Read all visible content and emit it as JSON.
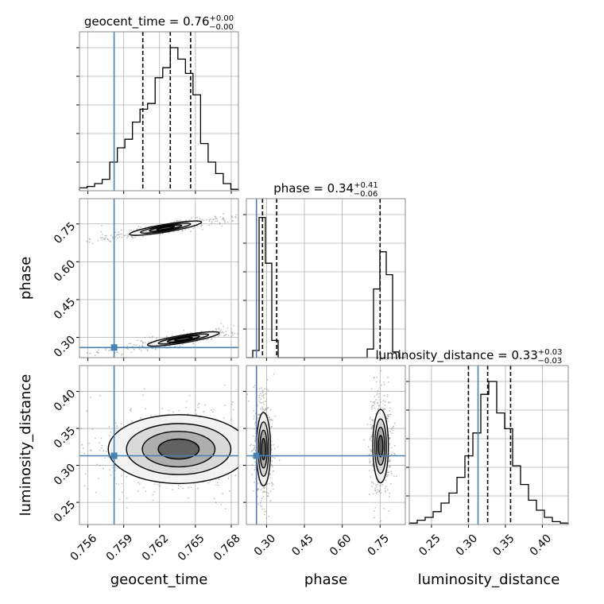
{
  "chart_data": {
    "type": "corner",
    "parameters": [
      "geocent_time",
      "phase",
      "luminosity_distance"
    ],
    "truth": {
      "geocent_time": 0.7582,
      "phase": 0.26,
      "luminosity_distance": 0.313
    },
    "axes": {
      "geocent_time": {
        "range": [
          0.7553,
          0.7686
        ],
        "ticks": [
          0.756,
          0.759,
          0.762,
          0.765,
          0.768
        ],
        "tick_labels": [
          "0.756",
          "0.759",
          "0.762",
          "0.765",
          "0.768"
        ],
        "label": "geocent_time"
      },
      "phase": {
        "range": [
          0.22,
          0.85
        ],
        "ticks": [
          0.3,
          0.45,
          0.6,
          0.75
        ],
        "tick_labels": [
          "0.30",
          "0.45",
          "0.60",
          "0.75"
        ],
        "label": "phase"
      },
      "luminosity_distance": {
        "range": [
          0.22,
          0.435
        ],
        "ticks": [
          0.25,
          0.3,
          0.35,
          0.4
        ],
        "tick_labels": [
          "0.25",
          "0.30",
          "0.35",
          "0.40"
        ],
        "label": "luminosity_distance"
      }
    },
    "marginals": [
      {
        "parameter": "geocent_time",
        "title_main": "geocent_time = 0.76",
        "title_sup": "+0.00",
        "title_sub": "−0.00",
        "quantiles": [
          0.7606,
          0.7629,
          0.7646
        ],
        "bin_range": [
          0.7553,
          0.7686
        ],
        "heights": [
          0.02,
          0.03,
          0.05,
          0.08,
          0.2,
          0.3,
          0.36,
          0.48,
          0.57,
          0.61,
          0.79,
          0.86,
          1.0,
          0.92,
          0.82,
          0.67,
          0.33,
          0.2,
          0.12,
          0.05,
          0.01
        ]
      },
      {
        "parameter": "phase",
        "title_main": "phase = 0.34",
        "title_sup": "+0.41",
        "title_sub": "−0.06",
        "quantiles": [
          0.284,
          0.34,
          0.75
        ],
        "bin_range": [
          0.22,
          0.85
        ],
        "heights": [
          0.0,
          0.05,
          0.98,
          0.66,
          0.12,
          0.0,
          0.0,
          0.0,
          0.0,
          0.0,
          0.0,
          0.0,
          0.0,
          0.0,
          0.0,
          0.0,
          0.0,
          0.0,
          0.0,
          0.06,
          0.48,
          0.74,
          0.58,
          0.04,
          0.0
        ]
      },
      {
        "parameter": "luminosity_distance",
        "title_main": "luminosity_distance = 0.33",
        "title_sup": "+0.03",
        "title_sub": "−0.03",
        "quantiles": [
          0.3,
          0.326,
          0.357
        ],
        "bin_range": [
          0.22,
          0.435
        ],
        "heights": [
          0.01,
          0.03,
          0.05,
          0.09,
          0.15,
          0.22,
          0.33,
          0.48,
          0.64,
          0.91,
          1.0,
          0.78,
          0.67,
          0.41,
          0.28,
          0.17,
          0.1,
          0.05,
          0.02,
          0.01
        ]
      }
    ],
    "joints": [
      {
        "x": "geocent_time",
        "y": "phase",
        "blobs": [
          {
            "center": [
              0.7625,
              0.733
            ],
            "major": 0.003,
            "minor": 0.028,
            "slope": 8.0
          },
          {
            "center": [
              0.764,
              0.294
            ],
            "major": 0.003,
            "minor": 0.028,
            "slope": 8.0
          }
        ]
      },
      {
        "x": "geocent_time",
        "y": "luminosity_distance",
        "blobs": [
          {
            "center": [
              0.7636,
              0.322
            ],
            "major": 0.0038,
            "minor": 0.03,
            "slope": 0.0
          }
        ]
      },
      {
        "x": "phase",
        "y": "luminosity_distance",
        "blobs": [
          {
            "center": [
              0.288,
              0.322
            ],
            "major": 0.018,
            "minor": 0.032,
            "slope": 0.0
          },
          {
            "center": [
              0.752,
              0.326
            ],
            "major": 0.02,
            "minor": 0.032,
            "slope": 0.0
          }
        ]
      }
    ],
    "colors": {
      "truth": "#4682b4",
      "histogram": "#000000",
      "grid": "#b0b0b0",
      "scatter": "#8c8c8c"
    },
    "grid": true
  }
}
